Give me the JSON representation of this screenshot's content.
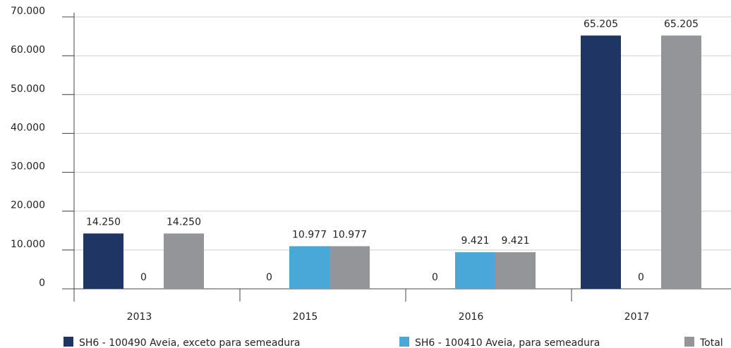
{
  "chart_data": {
    "type": "bar",
    "categories": [
      "2013",
      "2015",
      "2016",
      "2017"
    ],
    "series": [
      {
        "name": "SH6 - 100490 Aveia, exceto para semeadura",
        "color": "#1f3564",
        "values": [
          14250,
          0,
          0,
          65205
        ],
        "value_labels": [
          "14.250",
          "0",
          "0",
          "65.205"
        ]
      },
      {
        "name": "SH6 - 100410 Aveia, para semeadura",
        "color": "#4aa8d8",
        "values": [
          0,
          10977,
          9421,
          0
        ],
        "value_labels": [
          "0",
          "10.977",
          "9.421",
          "0"
        ]
      },
      {
        "name": "Total",
        "color": "#939598",
        "values": [
          14250,
          10977,
          9421,
          65205
        ],
        "value_labels": [
          "14.250",
          "10.977",
          "9.421",
          "65.205"
        ]
      }
    ],
    "ylim": [
      0,
      70000
    ],
    "yticks": [
      0,
      {
        "value": 10000,
        "label": "10.000"
      },
      {
        "value": 20000,
        "label": "20.000"
      },
      {
        "value": 30000,
        "label": "30.000"
      },
      {
        "value": 40000,
        "label": "40.000"
      },
      {
        "value": 50000,
        "label": "50.000"
      },
      {
        "value": 60000,
        "label": "60.000"
      },
      {
        "value": 70000,
        "label": "70.000"
      }
    ],
    "grid": true
  }
}
